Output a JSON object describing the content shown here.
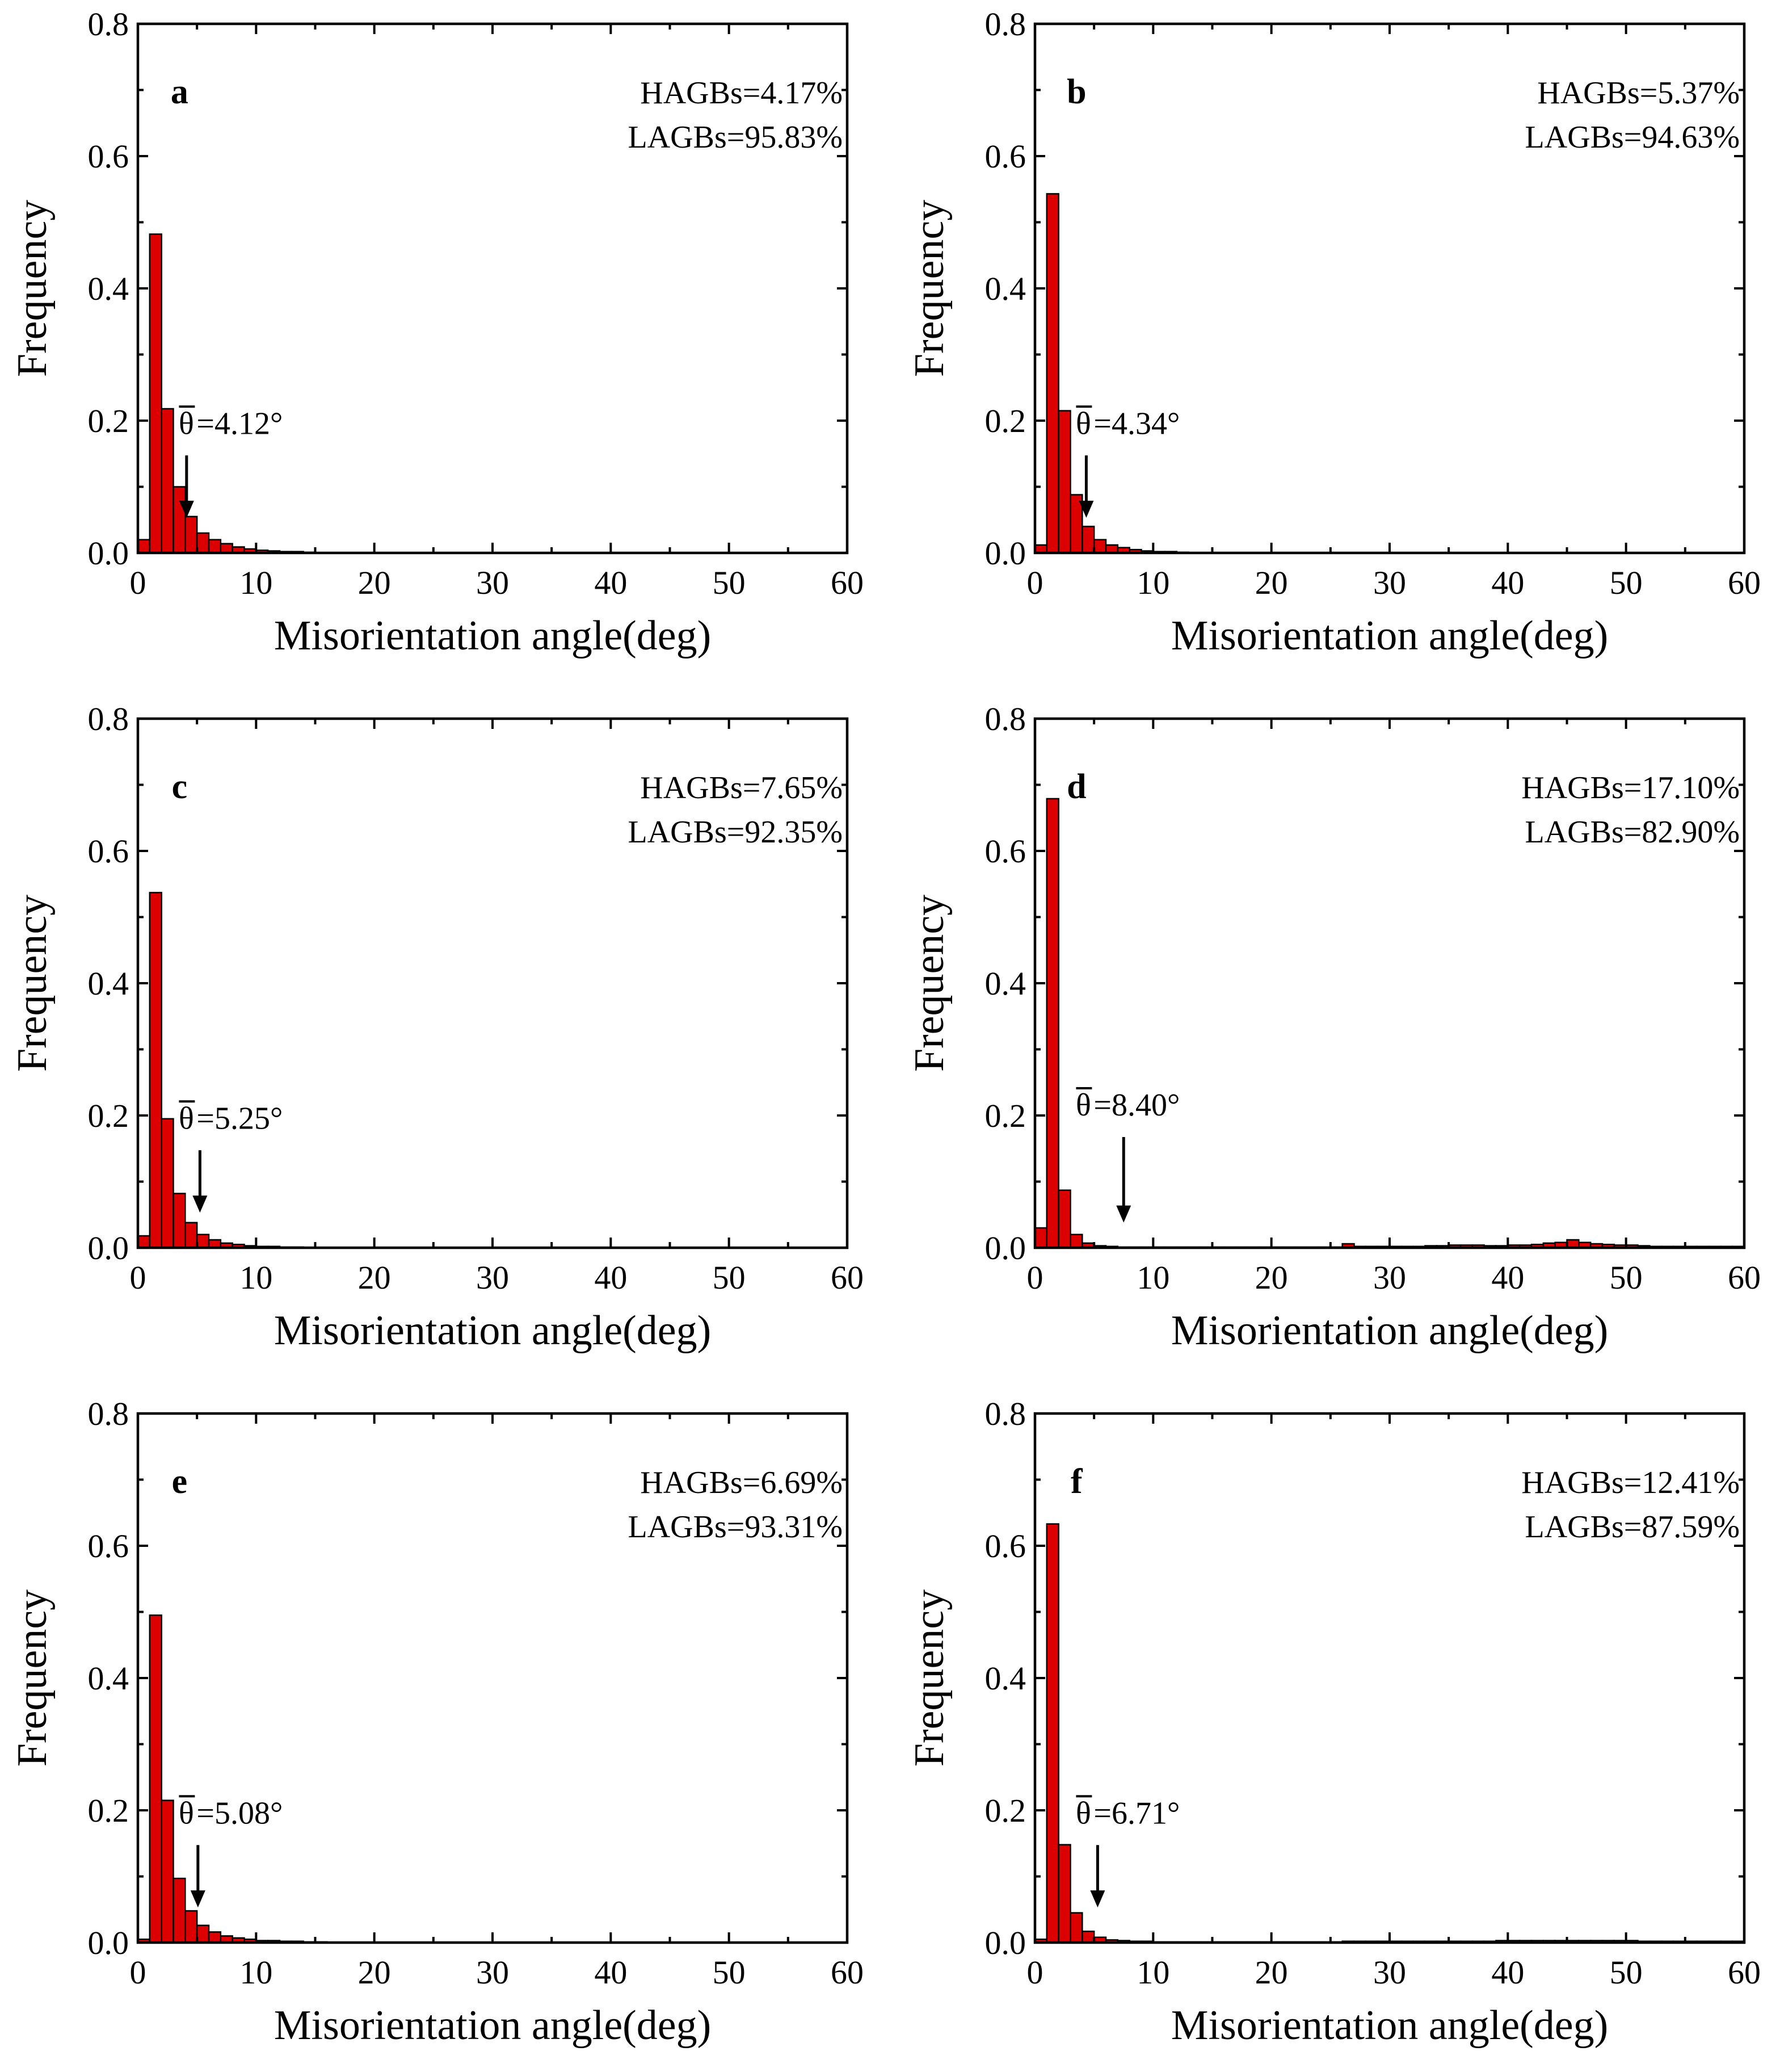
{
  "chart_data": [
    {
      "type": "bar",
      "panel_label": "a",
      "xlabel": "Misorientation angle(deg)",
      "ylabel": "Frequency",
      "xlim": [
        0,
        60
      ],
      "ylim": [
        0,
        0.8
      ],
      "x_ticks": [
        "0",
        "10",
        "20",
        "30",
        "40",
        "50",
        "60"
      ],
      "y_ticks": [
        "0.0",
        "0.2",
        "0.4",
        "0.6",
        "0.8"
      ],
      "bin_width": 1,
      "values": [
        0.02,
        0.482,
        0.218,
        0.1,
        0.055,
        0.03,
        0.02,
        0.014,
        0.009,
        0.006,
        0.004,
        0.003,
        0.002,
        0.002,
        0.001
      ],
      "mean_label": "=4.12°",
      "mean_value": 4.12,
      "annotation_lines": [
        "HAGBs=4.17%",
        "LAGBs=95.83%"
      ]
    },
    {
      "type": "bar",
      "panel_label": "b",
      "xlabel": "Misorientation angle(deg)",
      "ylabel": "Frequency",
      "xlim": [
        0,
        60
      ],
      "ylim": [
        0,
        0.8
      ],
      "x_ticks": [
        "0",
        "10",
        "20",
        "30",
        "40",
        "50",
        "60"
      ],
      "y_ticks": [
        "0.0",
        "0.2",
        "0.4",
        "0.6",
        "0.8"
      ],
      "bin_width": 1,
      "values": [
        0.012,
        0.543,
        0.215,
        0.088,
        0.04,
        0.02,
        0.012,
        0.008,
        0.005,
        0.003,
        0.002,
        0.002,
        0.001
      ],
      "mean_label": "=4.34°",
      "mean_value": 4.34,
      "annotation_lines": [
        "HAGBs=5.37%",
        "LAGBs=94.63%"
      ]
    },
    {
      "type": "bar",
      "panel_label": "c",
      "xlabel": "Misorientation angle(deg)",
      "ylabel": "Frequency",
      "xlim": [
        0,
        60
      ],
      "ylim": [
        0,
        0.8
      ],
      "x_ticks": [
        "0",
        "10",
        "20",
        "30",
        "40",
        "50",
        "60"
      ],
      "y_ticks": [
        "0.0",
        "0.2",
        "0.4",
        "0.6",
        "0.8"
      ],
      "bin_width": 1,
      "values": [
        0.018,
        0.537,
        0.195,
        0.082,
        0.038,
        0.02,
        0.012,
        0.007,
        0.005,
        0.003,
        0.002,
        0.002,
        0.001,
        0.001
      ],
      "mean_label": "=5.25°",
      "mean_value": 5.25,
      "annotation_lines": [
        "HAGBs=7.65%",
        "LAGBs=92.35%"
      ]
    },
    {
      "type": "bar",
      "panel_label": "d",
      "xlabel": "Misorientation angle(deg)",
      "ylabel": "Frequency",
      "xlim": [
        0,
        60
      ],
      "ylim": [
        0,
        0.8
      ],
      "x_ticks": [
        "0",
        "10",
        "20",
        "30",
        "40",
        "50",
        "60"
      ],
      "y_ticks": [
        "0.0",
        "0.2",
        "0.4",
        "0.6",
        "0.8"
      ],
      "bin_width": 1,
      "values": [
        0.03,
        0.679,
        0.087,
        0.02,
        0.007,
        0.003,
        0.002,
        0.001,
        0.001,
        0.001,
        0.001,
        0.001,
        0.001,
        0.001,
        0.001,
        0.001,
        0.001,
        0.001,
        0.001,
        0.001,
        0.001,
        0.001,
        0.001,
        0.001,
        0.001,
        0.001,
        0.006,
        0.002,
        0.002,
        0.002,
        0.002,
        0.002,
        0.002,
        0.003,
        0.003,
        0.004,
        0.004,
        0.004,
        0.003,
        0.003,
        0.004,
        0.004,
        0.005,
        0.007,
        0.008,
        0.012,
        0.008,
        0.006,
        0.005,
        0.004,
        0.004,
        0.003,
        0.002,
        0.002,
        0.002,
        0.002,
        0.002,
        0.002,
        0.002,
        0.002
      ],
      "mean_label": "=8.40°",
      "mean_value": 8.4,
      "annotation_lines": [
        "HAGBs=17.10%",
        "LAGBs=82.90%"
      ]
    },
    {
      "type": "bar",
      "panel_label": "e",
      "xlabel": "Misorientation angle(deg)",
      "ylabel": "Frequency",
      "xlim": [
        0,
        60
      ],
      "ylim": [
        0,
        0.8
      ],
      "x_ticks": [
        "0",
        "10",
        "20",
        "30",
        "40",
        "50",
        "60"
      ],
      "y_ticks": [
        "0.0",
        "0.2",
        "0.4",
        "0.6",
        "0.8"
      ],
      "bin_width": 1,
      "values": [
        0.005,
        0.495,
        0.215,
        0.097,
        0.048,
        0.026,
        0.016,
        0.01,
        0.007,
        0.005,
        0.003,
        0.003,
        0.002,
        0.002,
        0.001,
        0.001
      ],
      "mean_label": "=5.08°",
      "mean_value": 5.08,
      "annotation_lines": [
        "HAGBs=6.69%",
        "LAGBs=93.31%"
      ]
    },
    {
      "type": "bar",
      "panel_label": "f",
      "xlabel": "Misorientation angle(deg)",
      "ylabel": "Frequency",
      "xlim": [
        0,
        60
      ],
      "ylim": [
        0,
        0.8
      ],
      "x_ticks": [
        "0",
        "10",
        "20",
        "30",
        "40",
        "50",
        "60"
      ],
      "y_ticks": [
        "0.0",
        "0.2",
        "0.4",
        "0.6",
        "0.8"
      ],
      "bin_width": 1,
      "values": [
        0.005,
        0.633,
        0.148,
        0.045,
        0.017,
        0.008,
        0.004,
        0.003,
        0.002,
        0.002,
        0.001,
        0.001,
        0.001,
        0.001,
        0.001,
        0.001,
        0.001,
        0.001,
        0.001,
        0.001,
        0.001,
        0.001,
        0.001,
        0.001,
        0.001,
        0.001,
        0.002,
        0.002,
        0.002,
        0.002,
        0.002,
        0.002,
        0.002,
        0.002,
        0.002,
        0.002,
        0.002,
        0.002,
        0.002,
        0.003,
        0.003,
        0.003,
        0.003,
        0.003,
        0.003,
        0.003,
        0.003,
        0.003,
        0.003,
        0.003,
        0.003,
        0.002,
        0.002,
        0.002,
        0.002,
        0.002,
        0.002,
        0.002,
        0.002,
        0.002
      ],
      "mean_label": "=6.71°",
      "mean_value": 6.71,
      "annotation_lines": [
        "HAGBs=12.41%",
        "LAGBs=87.59%"
      ]
    }
  ],
  "mean_symbol": "θ",
  "colors": {
    "bar_fill": "#dd0000",
    "bar_stroke": "#000000",
    "axis": "#000000",
    "background": "#ffffff"
  }
}
